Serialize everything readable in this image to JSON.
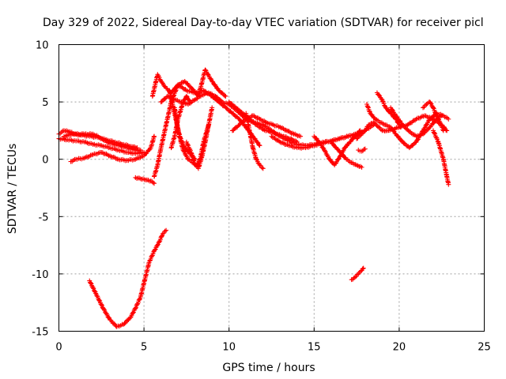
{
  "chart_data": {
    "type": "scatter",
    "title": "Day 329 of 2022, Sidereal Day-to-day VTEC variation (SDTVAR) for receiver picl",
    "xlabel": "GPS time / hours",
    "ylabel": "SDTVAR / TECUs",
    "xlim": [
      0,
      25
    ],
    "ylim": [
      -15,
      10
    ],
    "xticks": [
      "0",
      "5",
      "10",
      "15",
      "20",
      "25"
    ],
    "yticks": [
      "-15",
      "-10",
      "-5",
      "0",
      "5",
      "10"
    ],
    "grid": true,
    "marker": "plus",
    "color": "#ff0000",
    "series": [
      {
        "name": "s1",
        "x": [
          0.0,
          0.5,
          1.0,
          1.5,
          2.0,
          2.5,
          3.0,
          3.5,
          4.0,
          4.5,
          5.0
        ],
        "y": [
          1.8,
          1.7,
          1.6,
          1.5,
          1.3,
          1.2,
          1.0,
          0.8,
          0.6,
          0.5,
          0.6
        ]
      },
      {
        "name": "s2",
        "x": [
          0.0,
          0.3,
          0.6,
          1.0,
          1.5,
          2.0,
          2.3,
          2.6,
          3.0,
          3.5,
          4.0,
          4.5,
          4.8
        ],
        "y": [
          2.2,
          2.5,
          2.4,
          2.2,
          2.2,
          2.2,
          2.0,
          1.7,
          1.4,
          1.2,
          1.0,
          0.8,
          0.8
        ]
      },
      {
        "name": "s3",
        "x": [
          0.3,
          0.8,
          1.3,
          1.8,
          2.3,
          2.8,
          3.3,
          3.8,
          4.3,
          4.6
        ],
        "y": [
          2.0,
          2.2,
          2.1,
          2.0,
          1.9,
          1.7,
          1.5,
          1.3,
          1.1,
          1.0
        ]
      },
      {
        "name": "s4",
        "x": [
          0.7,
          1.0,
          1.5,
          2.0,
          2.5,
          3.0,
          3.5,
          4.0,
          4.5,
          5.0,
          5.4,
          5.6
        ],
        "y": [
          -0.2,
          0.0,
          0.1,
          0.4,
          0.6,
          0.3,
          0.0,
          -0.1,
          0.0,
          0.3,
          1.0,
          2.0
        ]
      },
      {
        "name": "s5",
        "x": [
          1.8,
          2.2,
          2.6,
          3.0,
          3.4,
          3.8,
          4.2,
          4.5,
          4.8,
          5.0,
          5.3,
          5.6,
          5.9,
          6.1,
          6.3
        ],
        "y": [
          -10.6,
          -11.8,
          -13.0,
          -14.0,
          -14.6,
          -14.4,
          -13.8,
          -13.0,
          -12.0,
          -10.8,
          -9.0,
          -8.0,
          -7.2,
          -6.5,
          -6.2
        ]
      },
      {
        "name": "s6",
        "x": [
          4.5,
          4.8,
          5.1,
          5.4,
          5.6
        ],
        "y": [
          -1.6,
          -1.7,
          -1.8,
          -1.9,
          -2.1
        ]
      },
      {
        "name": "s7",
        "x": [
          5.6,
          5.8,
          6.0,
          6.3,
          6.6,
          7.0,
          7.5,
          8.0,
          8.5,
          9.0,
          9.5,
          10.0,
          10.5,
          11.0,
          11.5,
          12.0
        ],
        "y": [
          -1.5,
          -0.5,
          1.0,
          3.0,
          5.0,
          6.5,
          6.0,
          5.8,
          6.0,
          5.5,
          5.0,
          4.8,
          4.2,
          3.5,
          3.2,
          3.0
        ]
      },
      {
        "name": "s8",
        "x": [
          5.5,
          5.8,
          6.0,
          6.3,
          6.6,
          7.0,
          7.4,
          7.8,
          8.2,
          8.6,
          9.0,
          9.4,
          9.8
        ],
        "y": [
          5.5,
          7.4,
          6.8,
          6.2,
          5.8,
          6.5,
          6.8,
          6.2,
          5.5,
          7.8,
          6.8,
          6.0,
          5.5
        ]
      },
      {
        "name": "s9",
        "x": [
          6.0,
          6.4,
          6.8,
          7.2,
          7.6,
          8.0,
          8.4,
          8.8,
          9.2,
          9.6
        ],
        "y": [
          5.0,
          5.5,
          5.2,
          5.0,
          4.8,
          5.2,
          5.6,
          5.8,
          5.5,
          5.0
        ]
      },
      {
        "name": "s10",
        "x": [
          6.6,
          6.8,
          7.0,
          7.3,
          7.5,
          7.7
        ],
        "y": [
          1.0,
          2.0,
          3.5,
          5.0,
          5.5,
          5.0
        ]
      },
      {
        "name": "s11",
        "x": [
          6.5,
          6.8,
          7.1,
          7.4,
          7.7,
          8.0
        ],
        "y": [
          6.0,
          4.0,
          2.0,
          1.0,
          0.5,
          0.0
        ]
      },
      {
        "name": "s12",
        "x": [
          6.8,
          7.0,
          7.3,
          7.6,
          7.9,
          8.1,
          8.3,
          8.5,
          8.8
        ],
        "y": [
          4.5,
          2.5,
          0.8,
          0.0,
          -0.3,
          -0.5,
          0.0,
          1.5,
          3.0
        ]
      },
      {
        "name": "s13",
        "x": [
          7.5,
          7.8,
          8.0,
          8.2,
          8.4,
          8.6,
          8.8,
          9.0
        ],
        "y": [
          1.5,
          0.5,
          -0.5,
          -0.8,
          0.2,
          1.5,
          3.0,
          4.5
        ]
      },
      {
        "name": "s14",
        "x": [
          9.0,
          9.4,
          9.8,
          10.2,
          10.6,
          11.0,
          11.4,
          11.8
        ],
        "y": [
          5.5,
          5.0,
          4.5,
          4.0,
          3.5,
          2.8,
          2.0,
          1.2
        ]
      },
      {
        "name": "s15",
        "x": [
          10.0,
          10.4,
          10.8,
          11.2,
          11.6,
          12.0,
          12.4,
          12.8,
          13.2,
          13.6,
          14.0
        ],
        "y": [
          5.0,
          4.5,
          4.0,
          3.5,
          3.0,
          2.6,
          2.4,
          2.2,
          2.0,
          1.8,
          1.5
        ]
      },
      {
        "name": "s16",
        "x": [
          10.2,
          10.6,
          11.0,
          11.4,
          11.8,
          12.2,
          12.6,
          13.0,
          13.4,
          13.8,
          14.2
        ],
        "y": [
          2.5,
          3.0,
          3.5,
          3.8,
          3.5,
          3.2,
          3.0,
          2.8,
          2.5,
          2.2,
          2.0
        ]
      },
      {
        "name": "s17",
        "x": [
          11.0,
          11.2,
          11.4,
          11.6,
          11.8,
          12.0
        ],
        "y": [
          4.0,
          2.5,
          1.0,
          0.0,
          -0.5,
          -0.8
        ]
      },
      {
        "name": "s18",
        "x": [
          12.0,
          12.5,
          13.0,
          13.5,
          14.0,
          14.5,
          15.0,
          15.5,
          16.0,
          16.5,
          17.0,
          17.5,
          18.0
        ],
        "y": [
          3.0,
          2.5,
          2.0,
          1.6,
          1.3,
          1.2,
          1.3,
          1.5,
          1.6,
          1.8,
          2.0,
          2.2,
          2.5
        ]
      },
      {
        "name": "s19",
        "x": [
          12.5,
          13.0,
          13.5,
          14.0,
          14.5,
          15.0,
          15.5,
          16.0,
          16.5,
          17.0,
          17.5
        ],
        "y": [
          2.0,
          1.5,
          1.2,
          1.0,
          1.0,
          1.2,
          1.4,
          1.6,
          1.8,
          2.0,
          2.2
        ]
      },
      {
        "name": "s20",
        "x": [
          15.0,
          15.3,
          15.6,
          15.9,
          16.2,
          16.5,
          16.8,
          17.1,
          17.4,
          17.7
        ],
        "y": [
          2.0,
          1.5,
          0.8,
          0.0,
          -0.5,
          0.2,
          1.0,
          1.5,
          2.0,
          2.5
        ]
      },
      {
        "name": "s21",
        "x": [
          16.0,
          16.3,
          16.6,
          16.9,
          17.2,
          17.5,
          17.8
        ],
        "y": [
          1.5,
          1.0,
          0.5,
          0.0,
          -0.3,
          -0.5,
          -0.7
        ]
      },
      {
        "name": "s22",
        "x": [
          17.6,
          17.8,
          18.0
        ],
        "y": [
          0.8,
          0.7,
          0.9
        ]
      },
      {
        "name": "s23",
        "x": [
          17.2,
          17.4,
          17.6,
          17.8,
          17.9
        ],
        "y": [
          -10.5,
          -10.3,
          -10.0,
          -9.7,
          -9.5
        ]
      },
      {
        "name": "s24",
        "x": [
          18.0,
          18.2,
          18.5,
          18.8,
          19.0,
          19.3,
          19.6,
          20.0,
          20.5,
          21.0,
          21.5,
          22.0,
          22.5,
          22.8
        ],
        "y": [
          2.5,
          3.0,
          3.2,
          2.8,
          2.5,
          2.5,
          2.6,
          2.8,
          3.0,
          3.5,
          3.8,
          3.5,
          3.0,
          2.5
        ]
      },
      {
        "name": "s25",
        "x": [
          18.1,
          18.3,
          18.6,
          18.9,
          19.2,
          19.5,
          19.8,
          20.2,
          20.6,
          21.0,
          21.4,
          21.8,
          22.2,
          22.6,
          22.9
        ],
        "y": [
          4.8,
          4.0,
          3.5,
          3.2,
          3.0,
          2.8,
          2.2,
          1.5,
          1.0,
          1.5,
          2.5,
          3.5,
          4.0,
          3.8,
          3.5
        ]
      },
      {
        "name": "s26",
        "x": [
          18.7,
          19.0,
          19.2,
          19.5,
          19.8,
          20.1
        ],
        "y": [
          5.8,
          5.2,
          4.5,
          4.0,
          3.5,
          2.8
        ]
      },
      {
        "name": "s27",
        "x": [
          19.5,
          19.8,
          20.2,
          20.6,
          21.0,
          21.4,
          21.8,
          22.2,
          22.5
        ],
        "y": [
          4.5,
          3.8,
          3.0,
          2.4,
          2.0,
          2.2,
          2.8,
          3.5,
          3.8
        ]
      },
      {
        "name": "s28",
        "x": [
          21.4,
          21.6,
          21.8,
          22.0,
          22.2,
          22.4,
          22.6
        ],
        "y": [
          4.5,
          4.8,
          5.0,
          4.5,
          3.8,
          3.2,
          2.5
        ]
      },
      {
        "name": "s29",
        "x": [
          22.0,
          22.3,
          22.6,
          22.8,
          22.9
        ],
        "y": [
          2.5,
          1.5,
          0.0,
          -1.5,
          -2.2
        ]
      },
      {
        "name": "s30",
        "x": [
          17.5,
          17.8,
          18.0,
          18.3,
          18.5
        ],
        "y": [
          1.8,
          2.2,
          2.5,
          2.8,
          3.0
        ]
      }
    ]
  }
}
